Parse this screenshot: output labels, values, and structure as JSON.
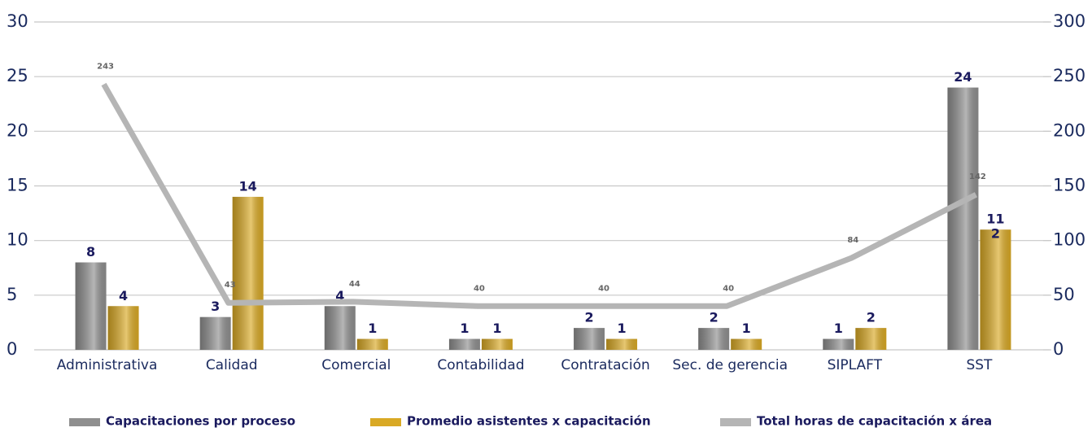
{
  "chart_data": {
    "type": "bar",
    "categories": [
      "Administrativa",
      "Calidad",
      "Comercial",
      "Contabilidad",
      "Contratación",
      "Sec. de gerencia",
      "SIPLAFT",
      "SST"
    ],
    "series": [
      {
        "name": "Capacitaciones por proceso",
        "color": "#8f8f8f",
        "type": "bar",
        "values": [
          8,
          3,
          4,
          1,
          2,
          2,
          1,
          24
        ]
      },
      {
        "name": "Promedio asistentes x capacitación",
        "color": "#d9a925",
        "type": "bar",
        "values": [
          4,
          14,
          1,
          1,
          1,
          1,
          2,
          11
        ]
      },
      {
        "name": "Total horas de capacitación x área",
        "color": "#b5b5b5",
        "type": "line",
        "axis": "y2",
        "values": [
          243,
          43,
          44,
          40,
          40,
          40,
          84,
          142
        ]
      }
    ],
    "annotations": [
      "2"
    ],
    "ylim": [
      0,
      30
    ],
    "yticks": [
      0,
      5,
      10,
      15,
      20,
      25,
      30
    ],
    "y2lim": [
      0,
      300
    ],
    "y2ticks": [
      0,
      50,
      100,
      150,
      200,
      250,
      300
    ],
    "grid": true
  }
}
